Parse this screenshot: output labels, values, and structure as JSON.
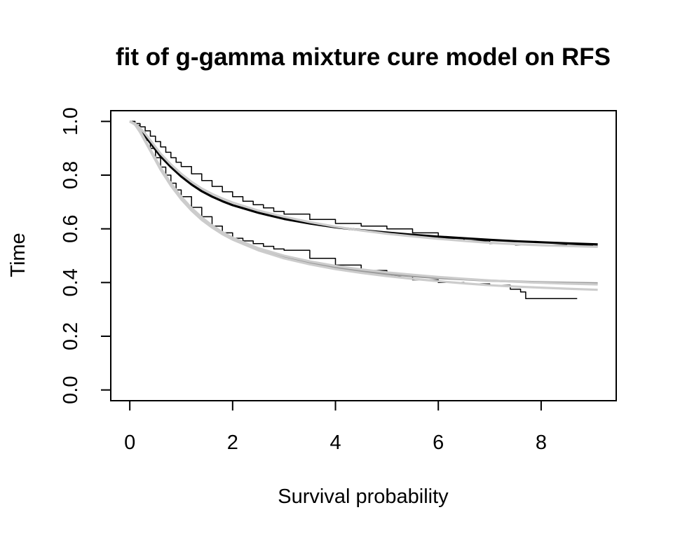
{
  "chart_data": {
    "type": "line",
    "title": "fit of g-gamma mixture cure model on RFS",
    "xlabel": "Survival probability",
    "ylabel": "Time",
    "xlim": [
      -0.37,
      9.46
    ],
    "ylim": [
      -0.04,
      1.04
    ],
    "xticks": [
      0,
      2,
      4,
      6,
      8
    ],
    "yticks": [
      0.0,
      0.2,
      0.4,
      0.6,
      0.8,
      1.0
    ],
    "xtick_labels": [
      "0",
      "2",
      "4",
      "6",
      "8"
    ],
    "ytick_labels": [
      "0.0",
      "0.2",
      "0.4",
      "0.6",
      "0.8",
      "1.0"
    ],
    "grid": false,
    "legend": "none",
    "colors": {
      "black": "#000000",
      "dark_gray": "#999999",
      "light_gray": "#cccccc"
    },
    "series": [
      {
        "style": "step",
        "color": "#000000",
        "stroke_width": 1.5,
        "x": [
          0,
          0.1,
          0.2,
          0.3,
          0.4,
          0.5,
          0.6,
          0.7,
          0.8,
          0.9,
          1.0,
          1.2,
          1.4,
          1.6,
          1.8,
          2.0,
          2.2,
          2.4,
          2.6,
          2.8,
          3.0,
          3.5,
          4.0,
          4.5,
          5.0,
          5.5,
          6.0,
          6.5,
          7.0,
          7.5,
          8.0,
          8.5,
          9.0,
          9.1
        ],
        "y": [
          1.0,
          0.992,
          0.98,
          0.965,
          0.945,
          0.925,
          0.905,
          0.885,
          0.865,
          0.848,
          0.832,
          0.805,
          0.78,
          0.758,
          0.738,
          0.72,
          0.703,
          0.69,
          0.678,
          0.665,
          0.655,
          0.635,
          0.62,
          0.61,
          0.6,
          0.585,
          0.565,
          0.555,
          0.545,
          0.54,
          0.54,
          0.538,
          0.535,
          0.535
        ]
      },
      {
        "style": "step",
        "color": "#000000",
        "stroke_width": 1.5,
        "x": [
          0,
          0.1,
          0.2,
          0.3,
          0.4,
          0.5,
          0.6,
          0.7,
          0.8,
          0.9,
          1.0,
          1.2,
          1.4,
          1.6,
          1.8,
          2.0,
          2.2,
          2.4,
          2.6,
          2.8,
          3.0,
          3.5,
          4.0,
          4.5,
          5.0,
          5.5,
          6.0,
          6.5,
          7.0,
          7.4,
          7.6,
          7.7,
          8.7
        ],
        "y": [
          1.0,
          0.985,
          0.96,
          0.93,
          0.9,
          0.865,
          0.83,
          0.8,
          0.77,
          0.745,
          0.72,
          0.68,
          0.645,
          0.61,
          0.585,
          0.565,
          0.555,
          0.545,
          0.535,
          0.525,
          0.52,
          0.49,
          0.465,
          0.445,
          0.425,
          0.41,
          0.4,
          0.395,
          0.39,
          0.375,
          0.365,
          0.34,
          0.34
        ]
      },
      {
        "style": "line",
        "color": "#000000",
        "stroke_width": 3.2,
        "x": [
          0,
          0.1,
          0.2,
          0.3,
          0.4,
          0.5,
          0.6,
          0.8,
          1.0,
          1.2,
          1.4,
          1.6,
          1.8,
          2.0,
          2.5,
          3.0,
          3.5,
          4.0,
          4.5,
          5.0,
          5.5,
          6.0,
          6.5,
          7.0,
          7.5,
          8.0,
          8.5,
          9.1
        ],
        "y": [
          1.0,
          0.99,
          0.97,
          0.945,
          0.92,
          0.895,
          0.87,
          0.83,
          0.795,
          0.765,
          0.74,
          0.72,
          0.703,
          0.688,
          0.66,
          0.637,
          0.62,
          0.606,
          0.595,
          0.586,
          0.578,
          0.571,
          0.565,
          0.559,
          0.554,
          0.55,
          0.546,
          0.542
        ]
      },
      {
        "style": "line",
        "color": "#cccccc",
        "stroke_width": 3.2,
        "x": [
          0,
          0.1,
          0.2,
          0.3,
          0.4,
          0.5,
          0.6,
          0.8,
          1.0,
          1.2,
          1.4,
          1.6,
          1.8,
          2.0,
          2.5,
          3.0,
          3.5,
          4.0,
          4.5,
          5.0,
          5.5,
          6.0,
          6.5,
          7.0,
          7.5,
          8.0,
          8.5,
          9.1
        ],
        "y": [
          1.0,
          0.992,
          0.975,
          0.955,
          0.93,
          0.905,
          0.88,
          0.84,
          0.805,
          0.775,
          0.75,
          0.73,
          0.713,
          0.698,
          0.668,
          0.645,
          0.625,
          0.608,
          0.594,
          0.582,
          0.572,
          0.563,
          0.555,
          0.548,
          0.543,
          0.539,
          0.536,
          0.533
        ]
      },
      {
        "style": "line",
        "color": "#999999",
        "stroke_width": 3.2,
        "x": [
          0,
          0.1,
          0.2,
          0.3,
          0.4,
          0.5,
          0.6,
          0.8,
          1.0,
          1.2,
          1.4,
          1.6,
          1.8,
          2.0,
          2.5,
          3.0,
          3.5,
          4.0,
          4.5,
          5.0,
          5.5,
          6.0,
          6.5,
          7.0,
          7.5,
          8.0,
          8.5,
          9.1
        ],
        "y": [
          1.0,
          0.99,
          0.965,
          0.93,
          0.895,
          0.86,
          0.825,
          0.765,
          0.715,
          0.673,
          0.638,
          0.61,
          0.585,
          0.565,
          0.525,
          0.495,
          0.472,
          0.455,
          0.442,
          0.432,
          0.424,
          0.417,
          0.412,
          0.407,
          0.404,
          0.401,
          0.399,
          0.397
        ]
      },
      {
        "style": "line",
        "color": "#cccccc",
        "stroke_width": 3.2,
        "x": [
          0,
          0.1,
          0.2,
          0.3,
          0.4,
          0.5,
          0.6,
          0.8,
          1.0,
          1.2,
          1.4,
          1.6,
          1.8,
          2.0,
          2.5,
          3.0,
          3.5,
          4.0,
          4.5,
          5.0,
          5.5,
          6.0,
          6.5,
          7.0,
          7.5,
          8.0,
          8.5,
          9.1
        ],
        "y": [
          1.0,
          0.988,
          0.96,
          0.925,
          0.89,
          0.855,
          0.82,
          0.76,
          0.71,
          0.668,
          0.633,
          0.605,
          0.58,
          0.56,
          0.52,
          0.49,
          0.468,
          0.45,
          0.436,
          0.424,
          0.414,
          0.405,
          0.397,
          0.39,
          0.385,
          0.381,
          0.377,
          0.373
        ]
      },
      {
        "style": "line",
        "color": "#cccccc",
        "stroke_width": 3.2,
        "x": [
          0,
          0.1,
          0.2,
          0.3,
          0.4,
          0.5,
          0.6,
          0.8,
          1.0,
          1.2,
          1.4,
          1.6,
          1.8,
          2.0,
          2.5,
          3.0,
          3.5,
          4.0,
          4.5,
          5.0,
          5.5,
          6.0,
          6.5,
          7.0,
          7.5,
          8.0,
          8.5,
          9.1
        ],
        "y": [
          1.0,
          0.99,
          0.965,
          0.93,
          0.895,
          0.862,
          0.828,
          0.77,
          0.72,
          0.678,
          0.643,
          0.613,
          0.588,
          0.567,
          0.528,
          0.5,
          0.479,
          0.462,
          0.449,
          0.438,
          0.429,
          0.421,
          0.414,
          0.408,
          0.403,
          0.399,
          0.396,
          0.393
        ]
      }
    ]
  }
}
